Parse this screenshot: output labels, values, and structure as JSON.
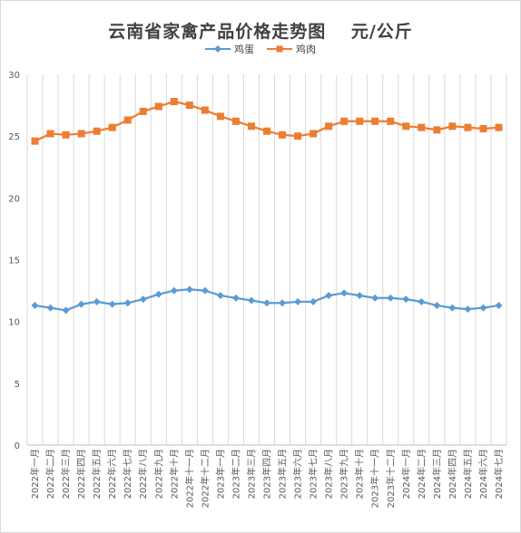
{
  "chart_data": {
    "type": "line",
    "title": "云南省家禽产品价格走势图　 元/公斤",
    "ylim": [
      0,
      30
    ],
    "yticks": [
      0,
      5,
      10,
      15,
      20,
      25,
      30
    ],
    "grid": "vertical",
    "legend_position": "top",
    "categories": [
      "2022年一月",
      "2022年二月",
      "2022年三月",
      "2022年四月",
      "2022年五月",
      "2022年六月",
      "2022年七月",
      "2022年八月",
      "2022年九月",
      "2022年十月",
      "2022年十一月",
      "2022年十二月",
      "2023年一月",
      "2023年二月",
      "2023年三月",
      "2023年四月",
      "2023年五月",
      "2023年六月",
      "2023年七月",
      "2023年八月",
      "2023年九月",
      "2023年十月",
      "2023年十一月",
      "2023年十二月",
      "2024年一月",
      "2024年二月",
      "2024年三月",
      "2024年四月",
      "2024年五月",
      "2024年六月",
      "2024年七月"
    ],
    "series": [
      {
        "name": "鸡蛋",
        "color": "#5b9bd5",
        "marker": "diamond",
        "values": [
          11.3,
          11.1,
          10.9,
          11.4,
          11.6,
          11.4,
          11.5,
          11.8,
          12.2,
          12.5,
          12.6,
          12.5,
          12.1,
          11.9,
          11.7,
          11.5,
          11.5,
          11.6,
          11.6,
          12.1,
          12.3,
          12.1,
          11.9,
          11.9,
          11.8,
          11.6,
          11.3,
          11.1,
          11.0,
          11.1,
          11.3
        ]
      },
      {
        "name": "鸡肉",
        "color": "#ed7d31",
        "marker": "square",
        "values": [
          24.6,
          25.2,
          25.1,
          25.2,
          25.4,
          25.7,
          26.3,
          27.0,
          27.4,
          27.8,
          27.5,
          27.1,
          26.6,
          26.2,
          25.8,
          25.4,
          25.1,
          25.0,
          25.2,
          25.8,
          26.2,
          26.2,
          26.2,
          26.2,
          25.8,
          25.7,
          25.5,
          25.8,
          25.7,
          25.6,
          25.7
        ]
      }
    ]
  }
}
